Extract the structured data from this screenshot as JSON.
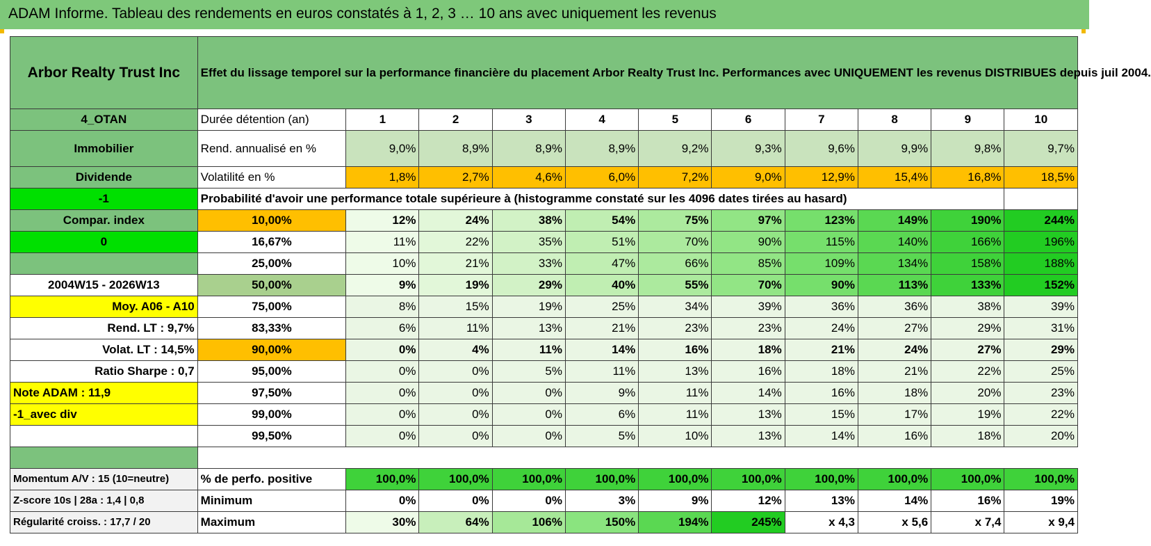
{
  "title": "ADAM Informe. Tableau des rendements en euros constatés à 1, 2, 3 … 10 ans avec uniquement les revenus",
  "header": {
    "company": "Arbor Realty Trust Inc",
    "description": "Effet du lissage temporel sur la performance financière du placement Arbor Realty Trust Inc. Performances avec UNIQUEMENT les revenus DISTRIBUES depuis juil 2004."
  },
  "side": {
    "code": "4_OTAN",
    "sector": "Immobilier",
    "type": "Dividende",
    "flag1": "-1",
    "compar": "Compar. index",
    "flag2": "0",
    "period": "2004W15 - 2026W13",
    "moy": "Moy. A06 - A10",
    "rend_lt": "Rend. LT :   9,7%",
    "volat_lt": "Volat. LT :   14,5%",
    "sharpe": "Ratio Sharpe :    0,7",
    "note": "Note ADAM : 11,9",
    "avec_div": "-1_avec div",
    "momentum": "Momentum A/V : 15 (10=neutre)",
    "zscore": "Z-score 10s | 28a : 1,4 | 0,8",
    "regularite": "Régularité croiss. : 17,7 / 20"
  },
  "labels": {
    "duree": "Durée détention (an)",
    "rend": "Rend. annualisé en %",
    "vol": "Volatilité en %",
    "proba": "Probabilité d'avoir une performance totale supérieure à (histogramme constaté sur les 4096 dates tirées au hasard)",
    "pos": "% de perfo. positive",
    "min": "Minimum",
    "max": "Maximum"
  },
  "years": [
    "1",
    "2",
    "3",
    "4",
    "5",
    "6",
    "7",
    "8",
    "9",
    "10"
  ],
  "rend": [
    "9,0%",
    "8,9%",
    "8,9%",
    "8,9%",
    "9,2%",
    "9,3%",
    "9,6%",
    "9,9%",
    "9,8%",
    "9,7%"
  ],
  "vol": [
    "1,8%",
    "2,7%",
    "4,6%",
    "6,0%",
    "7,2%",
    "9,0%",
    "12,9%",
    "15,4%",
    "16,8%",
    "18,5%"
  ],
  "proba_rows": [
    {
      "pct": "10,00%",
      "vals": [
        "12%",
        "24%",
        "38%",
        "54%",
        "75%",
        "97%",
        "123%",
        "149%",
        "190%",
        "244%"
      ]
    },
    {
      "pct": "16,67%",
      "vals": [
        "11%",
        "22%",
        "35%",
        "51%",
        "70%",
        "90%",
        "115%",
        "140%",
        "166%",
        "196%"
      ]
    },
    {
      "pct": "25,00%",
      "vals": [
        "10%",
        "21%",
        "33%",
        "47%",
        "66%",
        "85%",
        "109%",
        "134%",
        "158%",
        "188%"
      ]
    },
    {
      "pct": "50,00%",
      "vals": [
        "9%",
        "19%",
        "29%",
        "40%",
        "55%",
        "70%",
        "90%",
        "113%",
        "133%",
        "152%"
      ]
    },
    {
      "pct": "75,00%",
      "vals": [
        "8%",
        "15%",
        "19%",
        "25%",
        "34%",
        "39%",
        "36%",
        "36%",
        "38%",
        "39%"
      ]
    },
    {
      "pct": "83,33%",
      "vals": [
        "6%",
        "11%",
        "13%",
        "21%",
        "23%",
        "23%",
        "24%",
        "27%",
        "29%",
        "31%"
      ]
    },
    {
      "pct": "90,00%",
      "vals": [
        "0%",
        "4%",
        "11%",
        "14%",
        "16%",
        "18%",
        "21%",
        "24%",
        "27%",
        "29%"
      ]
    },
    {
      "pct": "95,00%",
      "vals": [
        "0%",
        "0%",
        "5%",
        "11%",
        "13%",
        "16%",
        "18%",
        "21%",
        "22%",
        "25%"
      ]
    },
    {
      "pct": "97,50%",
      "vals": [
        "0%",
        "0%",
        "0%",
        "9%",
        "11%",
        "14%",
        "16%",
        "18%",
        "20%",
        "23%"
      ]
    },
    {
      "pct": "99,00%",
      "vals": [
        "0%",
        "0%",
        "0%",
        "6%",
        "11%",
        "13%",
        "15%",
        "17%",
        "19%",
        "22%"
      ]
    },
    {
      "pct": "99,50%",
      "vals": [
        "0%",
        "0%",
        "0%",
        "5%",
        "10%",
        "13%",
        "14%",
        "16%",
        "18%",
        "20%"
      ]
    }
  ],
  "positive": [
    "100,0%",
    "100,0%",
    "100,0%",
    "100,0%",
    "100,0%",
    "100,0%",
    "100,0%",
    "100,0%",
    "100,0%",
    "100,0%"
  ],
  "minimum": [
    "0%",
    "0%",
    "0%",
    "3%",
    "9%",
    "12%",
    "13%",
    "14%",
    "16%",
    "19%"
  ],
  "maximum": [
    "30%",
    "64%",
    "106%",
    "150%",
    "194%",
    "245%",
    "x 4,3",
    "x 5,6",
    "x 7,4",
    "x 9,4"
  ],
  "colors": {
    "header_green": "#7cc27d",
    "orange": "#ffbf00",
    "bright_green": "#00e000",
    "yellow": "#ffff00",
    "red_text": "#e00000"
  }
}
